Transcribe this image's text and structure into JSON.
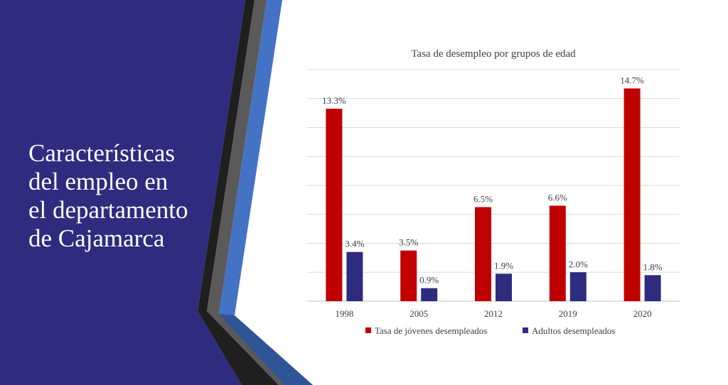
{
  "slide": {
    "title": "Características\ndel empleo en\nel departamento\nde Cajamarca",
    "background_color": "#2E2C7E",
    "stripe_colors": [
      "#1F1F1F",
      "#5A5A5A",
      "#4472C4"
    ]
  },
  "chart_data": {
    "type": "bar",
    "title": "Tasa de desempleo por grupos de edad",
    "categories": [
      "1998",
      "2005",
      "2012",
      "2019",
      "2020"
    ],
    "series": [
      {
        "name": "Tasa de jóvenes desempleados",
        "color": "#C00000",
        "values": [
          13.3,
          3.5,
          6.5,
          6.6,
          14.7
        ],
        "labels": [
          "13.3%",
          "3.5%",
          "6.5%",
          "6.6%",
          "14.7%"
        ]
      },
      {
        "name": "Adultos desempleados",
        "color": "#2E2C7E",
        "values": [
          3.4,
          0.9,
          1.9,
          2.0,
          1.8
        ],
        "labels": [
          "3.4%",
          "0.9%",
          "1.9%",
          "2.0%",
          "1.8%"
        ]
      }
    ],
    "ylim": [
      0,
      16
    ],
    "grid": true,
    "legend": "bottom",
    "xlabel": "",
    "ylabel": ""
  }
}
